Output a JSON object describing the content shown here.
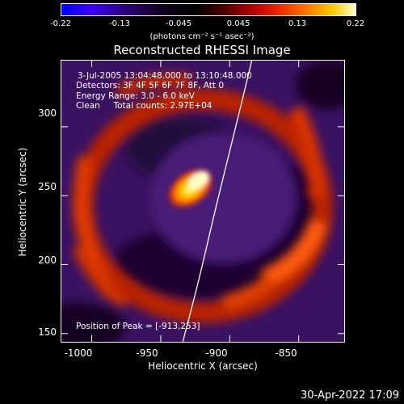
{
  "colorbar": {
    "ticks": [
      "-0.22",
      "-0.13",
      "-0.045",
      "0.045",
      "0.13",
      "0.22"
    ],
    "units": "(photons cm⁻² s⁻¹ asec⁻²)"
  },
  "title": "Reconstructed RHESSI Image",
  "annotations": {
    "time_range": "3-Jul-2005 13:04:48.000 to 13:10:48.000",
    "detectors": "Detectors: 3F 4F 5F 6F 7F 8F, Att 0",
    "energy": "Energy Range: 3.0 - 6.0 keV",
    "clean": "Clean     Total counts: 2.97E+04",
    "peak": "Position of Peak = [-913,253]"
  },
  "axes": {
    "xlabel": "Heliocentric X (arcsec)",
    "ylabel": "Heliocentric Y (arcsec)",
    "xticks": [
      "-1000",
      "-950",
      "-900",
      "-850"
    ],
    "yticks": [
      "150",
      "200",
      "250",
      "300"
    ],
    "x_tick_values": [
      -1000,
      -950,
      -900,
      -850
    ],
    "y_tick_values": [
      150,
      200,
      250,
      300
    ],
    "xlim": [
      -1022,
      -817
    ],
    "ylim": [
      144,
      348
    ]
  },
  "limb": {
    "points": [
      [
        -934,
        144
      ],
      [
        -922,
        190
      ],
      [
        -910,
        242
      ],
      [
        -898,
        290
      ],
      [
        -884,
        348
      ]
    ]
  },
  "peak": {
    "x": -913,
    "y": 253
  },
  "timestamp": "30-Apr-2022 17:09"
}
